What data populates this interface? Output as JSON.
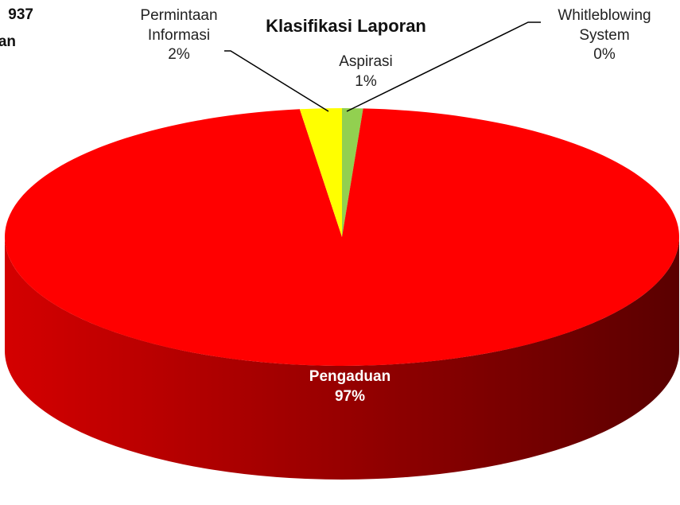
{
  "chart_data": {
    "type": "pie",
    "title": "Klasifikasi Laporan",
    "side_texts": [
      "937",
      "an"
    ],
    "categories": [
      "Aspirasi",
      "Pengaduan",
      "Permintaan Informasi",
      "Whitleblowing System"
    ],
    "values": [
      1,
      97,
      2,
      0
    ],
    "value_labels": [
      "1%",
      "97%",
      "2%",
      "0%"
    ],
    "colors": [
      "#92d050",
      "#ff0000",
      "#ffff00",
      "#4472c4"
    ],
    "side_colors": [
      [
        "#5f8a30",
        "#3d5a1e"
      ],
      [
        "#d40000",
        "#5a0000"
      ],
      [
        "#b0b000",
        "#808000"
      ],
      [
        "#2f5597",
        "#1f3864"
      ]
    ]
  }
}
